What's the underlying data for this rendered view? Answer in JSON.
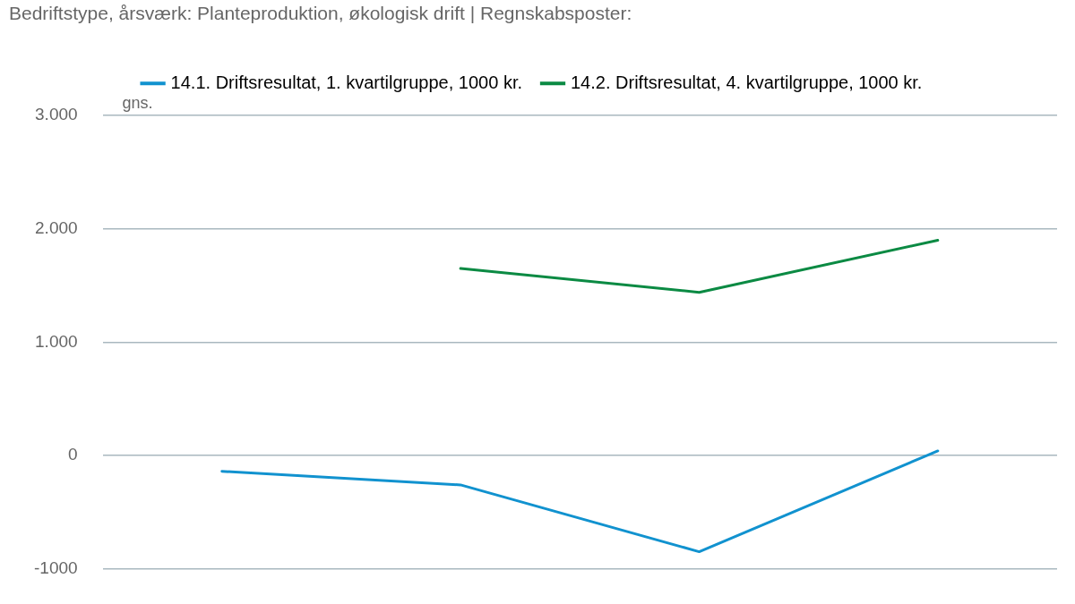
{
  "chart_data": {
    "type": "line",
    "title": "Bedriftstype, årsværk: Planteproduktion, økologisk drift | Regnskabsposter:",
    "ylabel": "gns.",
    "categories": [
      null,
      null,
      null,
      null
    ],
    "series": [
      {
        "name": "14.1. Driftsresultat, 1. kvartilgruppe, 1000 kr.",
        "color": "#1192cf",
        "values": [
          -140,
          -260,
          -850,
          40
        ]
      },
      {
        "name": "14.2. Driftsresultat, 4. kvartilgruppe, 1000 kr.",
        "color": "#0b8a43",
        "values": [
          null,
          1650,
          1440,
          1900
        ]
      }
    ],
    "ylim": [
      -1000,
      3000
    ],
    "yticks": [
      {
        "value": -1000,
        "label": "-1000"
      },
      {
        "value": 0,
        "label": "0"
      },
      {
        "value": 1000,
        "label": "1.000"
      },
      {
        "value": 2000,
        "label": "2.000"
      },
      {
        "value": 3000,
        "label": "3.000"
      }
    ],
    "grid": "y",
    "legend": "top",
    "marker": "none",
    "line_style": "solid"
  }
}
